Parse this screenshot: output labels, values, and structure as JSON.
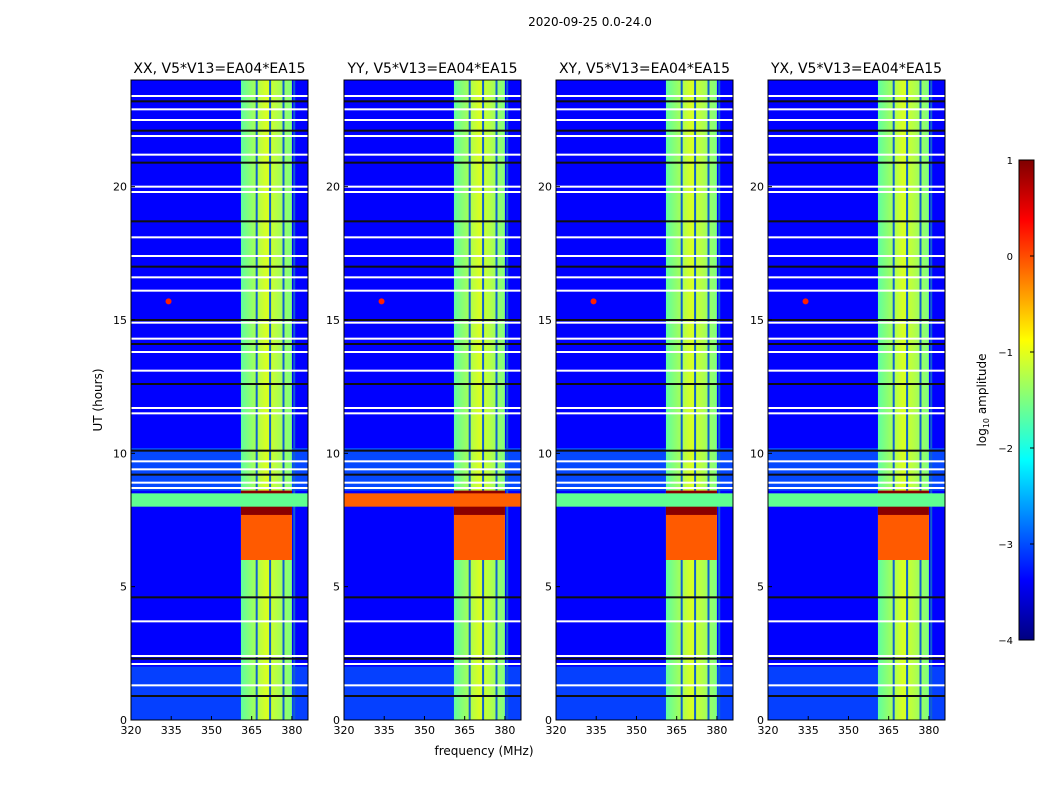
{
  "chart_data": {
    "type": "heatmap",
    "suptitle": "2020-09-25 0.0-24.0",
    "xlabel": "frequency (MHz)",
    "ylabel": "UT (hours)",
    "xlim": [
      320,
      386
    ],
    "ylim": [
      0,
      24
    ],
    "xticks": [
      320,
      335,
      350,
      365,
      380
    ],
    "yticks": [
      0,
      5,
      10,
      15,
      20
    ],
    "panels": [
      {
        "title": "XX, V5*V13=EA04*EA15"
      },
      {
        "title": "YY, V5*V13=EA04*EA15"
      },
      {
        "title": "XY, V5*V13=EA04*EA15"
      },
      {
        "title": "YX, V5*V13=EA04*EA15"
      }
    ],
    "colorbar": {
      "label_prefix": "log",
      "label_sub": "10",
      "label_suffix": " amplitude",
      "range": [
        -4,
        1
      ],
      "ticks": [
        1,
        0,
        -1,
        -2,
        -3,
        -4
      ],
      "tick_labels": [
        "1",
        "0",
        "−1",
        "−2",
        "−3",
        "−4"
      ],
      "colormap": [
        "#00007f",
        "#0000ff",
        "#007fff",
        "#00ffff",
        "#7fff7f",
        "#ffff00",
        "#ff7f00",
        "#ff0000",
        "#7f0000"
      ]
    },
    "features": {
      "background_log_amp": -3.3,
      "rfi_band_mhz": [
        361,
        380
      ],
      "rfi_band_log_amp": -1.0,
      "rfi_subband_centers_mhz": [
        365,
        370,
        375,
        379
      ],
      "rfi_burst_hours": [
        [
          6.0,
          8.6
        ]
      ],
      "broadband_burst_hours": [
        8.0,
        8.5
      ],
      "spike_freq_mhz": 334,
      "spike_hour": 15.7,
      "flagged_hours": [
        0.9,
        1.3,
        2.1,
        2.3,
        2.4,
        3.7,
        4.6,
        8.7,
        8.9,
        9.2,
        9.4,
        9.7,
        10.1,
        11.5,
        11.7,
        12.6,
        13.1,
        13.8,
        14.1,
        14.3,
        14.9,
        15.0,
        16.1,
        16.6,
        17.0,
        17.4,
        18.1,
        18.7,
        19.8,
        20.0,
        20.9,
        21.2,
        21.9,
        22.1,
        22.5,
        22.9,
        23.2,
        23.4
      ]
    }
  }
}
